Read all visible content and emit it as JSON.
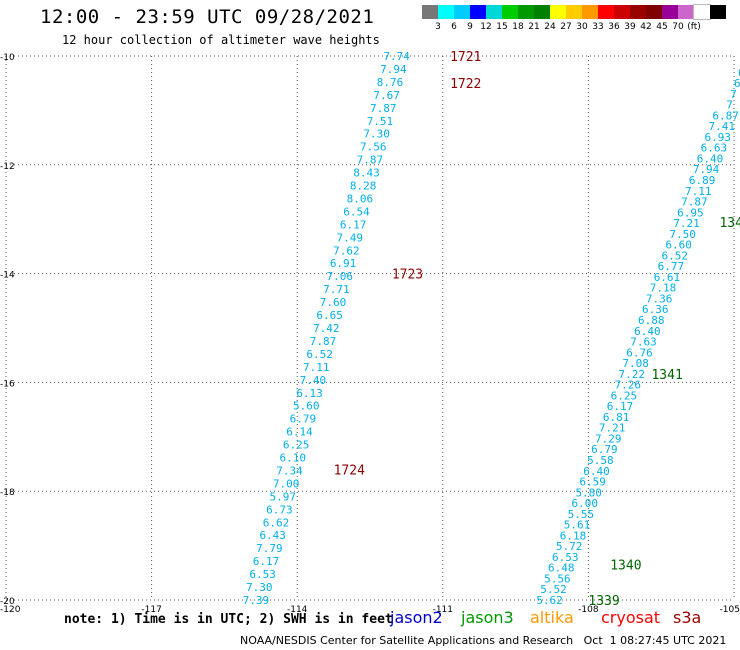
{
  "header": {
    "title": "12:00 - 23:59 UTC 09/28/2021",
    "subtitle": "12 hour collection of altimeter wave heights"
  },
  "legend": {
    "colors": [
      "#777777",
      "#00ffff",
      "#00ccff",
      "#0000ff",
      "#00d8d8",
      "#00cc00",
      "#009900",
      "#008000",
      "#ffff00",
      "#ffcc00",
      "#ff9900",
      "#ff0000",
      "#cc0000",
      "#990000",
      "#800000",
      "#990099",
      "#cc66cc",
      "#ffffff",
      "#000000"
    ],
    "labels": [
      "3",
      "6",
      "9",
      "12",
      "15",
      "18",
      "21",
      "24",
      "27",
      "30",
      "33",
      "36",
      "39",
      "42",
      "45",
      "70",
      "(ft)"
    ]
  },
  "axes": {
    "lat_labels": [
      "-10",
      "-12",
      "-14",
      "-16",
      "-18",
      "-20"
    ],
    "lon_labels": [
      "-120",
      "-117",
      "-114",
      "-111",
      "-108",
      "-105"
    ],
    "lat_range": [
      -20,
      -10
    ],
    "lon_range": [
      -120,
      -105
    ]
  },
  "tracks": [
    {
      "name": "track-west",
      "color": "#00b0e8",
      "start": [
        -111.95,
        -10.0
      ],
      "end": [
        -114.85,
        -20.0
      ],
      "values": [
        "7.74",
        "7.94",
        "8.76",
        "7.67",
        "7.87",
        "7.51",
        "7.30",
        "7.56",
        "7.87",
        "8.43",
        "8.28",
        "8.06",
        "6.54",
        "6.17",
        "7.49",
        "7.62",
        "6.91",
        "7.06",
        "7.71",
        "7.60",
        "6.65",
        "7.42",
        "7.87",
        "6.52",
        "7.11",
        "7.40",
        "6.13",
        "5.60",
        "6.79",
        "6.14",
        "6.25",
        "6.10",
        "7.34",
        "7.00",
        "5.97",
        "6.73",
        "6.62",
        "6.43",
        "7.79",
        "6.17",
        "6.53",
        "7.30",
        "7.39"
      ]
    },
    {
      "name": "track-east",
      "color": "#00b0e8",
      "start": [
        -104.85,
        -10.3
      ],
      "end": [
        -108.8,
        -20.0
      ],
      "values": [
        "6",
        "6",
        "7",
        "7",
        "6.87",
        "7.41",
        "6.93",
        "6.63",
        "6.40",
        "7.94",
        "6.89",
        "7.11",
        "7.87",
        "6.95",
        "7.21",
        "7.50",
        "6.60",
        "6.52",
        "6.77",
        "6.61",
        "7.18",
        "7.36",
        "6.36",
        "6.88",
        "6.40",
        "7.63",
        "6.76",
        "7.08",
        "7.22",
        "7.26",
        "6.25",
        "6.17",
        "6.81",
        "7.21",
        "7.29",
        "6.79",
        "5.58",
        "6.40",
        "6.59",
        "5.80",
        "6.00",
        "5.55",
        "5.61",
        "6.18",
        "5.72",
        "6.53",
        "6.48",
        "5.56",
        "5.52",
        "5.62"
      ]
    }
  ],
  "markers": [
    {
      "text": "1721",
      "color": "#8b0000",
      "lon": -110.85,
      "lat": -10.0
    },
    {
      "text": "1722",
      "color": "#8b0000",
      "lon": -110.85,
      "lat": -10.5
    },
    {
      "text": "1723",
      "color": "#8b0000",
      "lon": -112.05,
      "lat": -14.0
    },
    {
      "text": "1724",
      "color": "#8b0000",
      "lon": -113.25,
      "lat": -17.6
    },
    {
      "text": "134",
      "color": "#006400",
      "lon": -105.3,
      "lat": -13.05
    },
    {
      "text": "1341",
      "color": "#006400",
      "lon": -106.7,
      "lat": -15.85
    },
    {
      "text": "1340",
      "color": "#006400",
      "lon": -107.55,
      "lat": -19.35
    },
    {
      "text": "1339",
      "color": "#006400",
      "lon": -108.0,
      "lat": -20.0
    }
  ],
  "footer": {
    "note": "note: 1) Time is in UTC; 2) SWH is in feet",
    "satellites": [
      {
        "name": "jason2",
        "color": "#0000cc"
      },
      {
        "name": "jason3",
        "color": "#009900"
      },
      {
        "name": "altika",
        "color": "#ff9900"
      },
      {
        "name": "cryosat",
        "color": "#ff0000"
      },
      {
        "name": "s3a",
        "color": "#990000"
      }
    ],
    "credit": "NOAA/NESDIS Center for Satellite Applications and Research   Oct  1 08:27:45 UTC 2021"
  }
}
